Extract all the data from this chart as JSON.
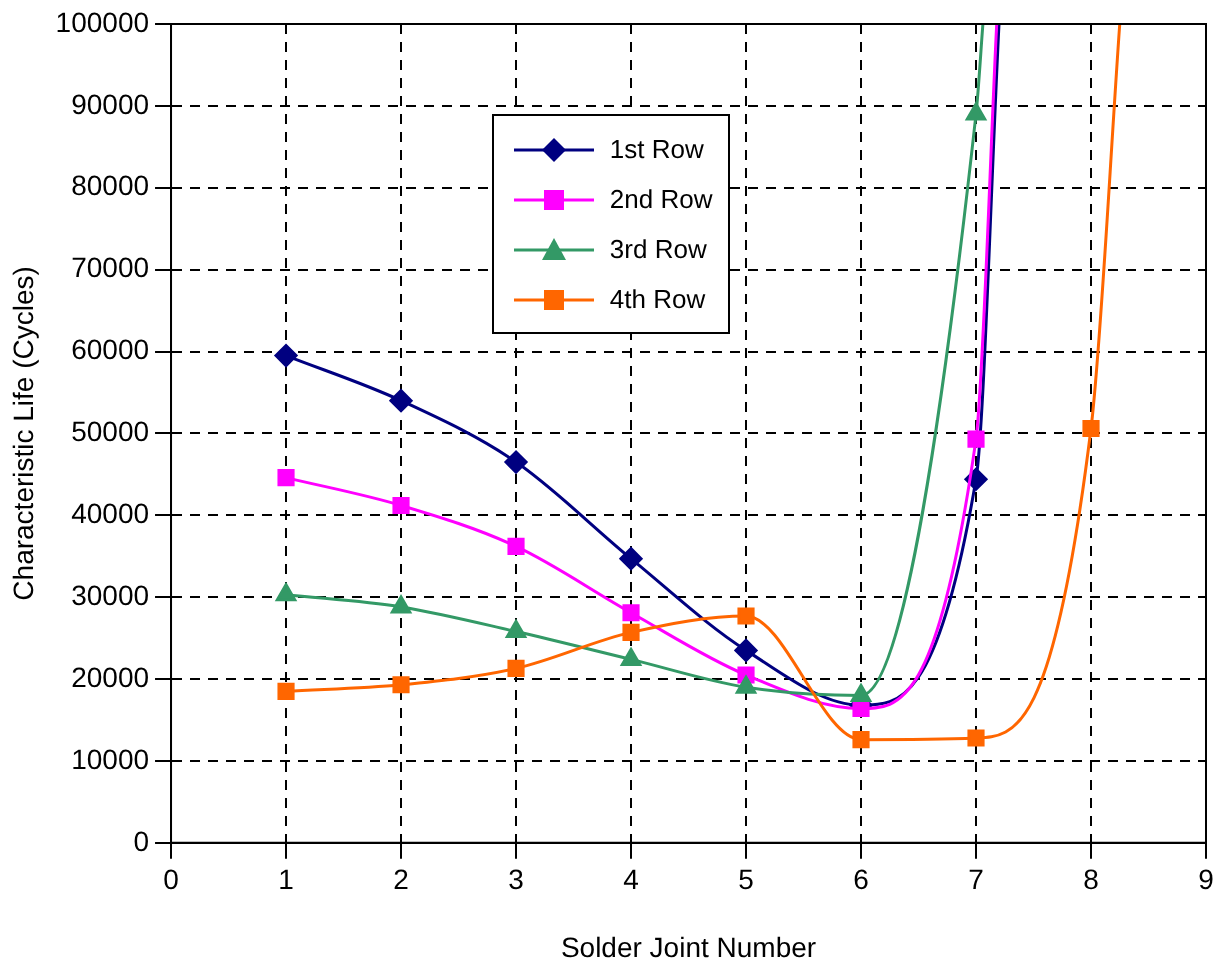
{
  "chart_data": {
    "type": "line",
    "xlabel": "Solder Joint Number",
    "ylabel": "Characteristic Life (Cycles)",
    "xlim": [
      0,
      9
    ],
    "xticks": [
      0,
      1,
      2,
      3,
      4,
      5,
      6,
      7,
      8,
      9
    ],
    "ylim": [
      0,
      100000
    ],
    "yticks": [
      0,
      10000,
      20000,
      30000,
      40000,
      50000,
      60000,
      70000,
      80000,
      90000,
      100000
    ],
    "grid": true,
    "legend": "top left",
    "line_style": "solid",
    "series": [
      {
        "name": "1st Row",
        "color": "#000080",
        "marker": "diamond",
        "x": [
          1,
          2,
          3,
          4,
          5,
          6,
          7,
          7.2
        ],
        "values": [
          59500,
          54000,
          46500,
          34700,
          23500,
          16800,
          44400,
          100000
        ]
      },
      {
        "name": "2nd Row",
        "color": "#ff00ff",
        "marker": "square",
        "x": [
          1,
          2,
          3,
          4,
          5,
          6,
          7,
          7.18
        ],
        "values": [
          44600,
          41200,
          36200,
          28100,
          20500,
          16400,
          49300,
          100000
        ]
      },
      {
        "name": "3rd Row",
        "color": "#339966",
        "marker": "triangle",
        "x": [
          1,
          2,
          3,
          4,
          5,
          6,
          7,
          7.06
        ],
        "values": [
          30300,
          28800,
          25800,
          22400,
          19000,
          18000,
          89000,
          100000
        ]
      },
      {
        "name": "4th Row",
        "color": "#ff6600",
        "marker": "square",
        "x": [
          1,
          2,
          3,
          4,
          5,
          6,
          7,
          8,
          8.25
        ],
        "values": [
          18500,
          19300,
          21300,
          25700,
          27700,
          12600,
          12800,
          50600,
          100000
        ]
      }
    ]
  }
}
